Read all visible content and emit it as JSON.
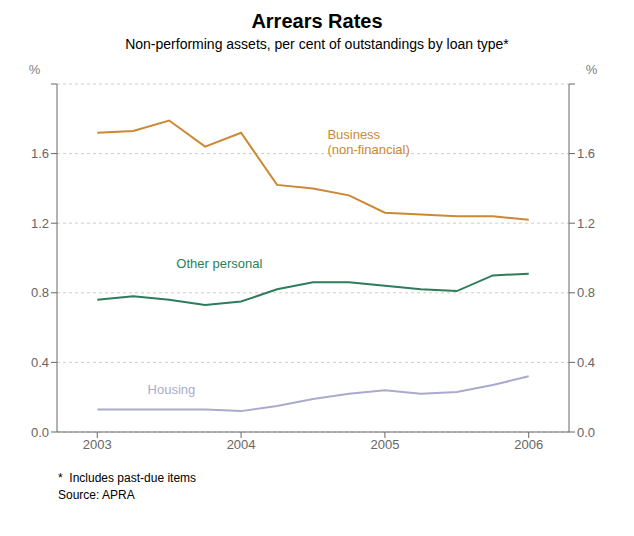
{
  "chart_data": {
    "type": "line",
    "title": "Arrears Rates",
    "subtitle": "Non-performing assets, per cent of outstandings by loan type*",
    "ylabel": "%",
    "y2label": "%",
    "footnotes": [
      "*  Includes past-due items",
      "Source: APRA"
    ],
    "x": [
      2003.0,
      2003.25,
      2003.5,
      2003.75,
      2004.0,
      2004.25,
      2004.5,
      2004.75,
      2005.0,
      2005.25,
      2005.5,
      2005.75,
      2006.0
    ],
    "series": [
      {
        "color": "#cc8833",
        "values": [
          1.72,
          1.73,
          1.79,
          1.64,
          1.72,
          1.42,
          1.4,
          1.36,
          1.26,
          1.25,
          1.24,
          1.24,
          1.22
        ]
      },
      {
        "color": "#2d7d5a",
        "values": [
          0.76,
          0.78,
          0.76,
          0.73,
          0.75,
          0.82,
          0.86,
          0.86,
          0.84,
          0.82,
          0.81,
          0.9,
          0.91
        ]
      },
      {
        "color": "#aaaacc",
        "values": [
          0.13,
          0.13,
          0.13,
          0.13,
          0.12,
          0.15,
          0.19,
          0.22,
          0.24,
          0.22,
          0.23,
          0.27,
          0.32
        ]
      }
    ],
    "annotations": [
      {
        "text": "Business\n(non-financial)",
        "x": 2004.6,
        "y": 1.67,
        "color": "#cc8833"
      },
      {
        "text": "Other personal",
        "x": 2003.55,
        "y": 0.97,
        "color": "#2d7d5a"
      },
      {
        "text": "Housing",
        "x": 2003.35,
        "y": 0.25,
        "color": "#aaaacc"
      }
    ],
    "xlim": [
      2002.72,
      2006.28
    ],
    "xticks": [
      2003,
      2004,
      2005,
      2006
    ],
    "ylim": [
      0.0,
      2.0
    ],
    "yticks": [
      {
        "value": 0,
        "label": "0.0"
      },
      0.4,
      0.8,
      1.2,
      1.6,
      {
        "value": 2,
        "label": ""
      }
    ],
    "y2lim": [
      0.0,
      2.0
    ],
    "y2ticks": [
      {
        "value": 0,
        "label": "0.0"
      },
      0.4,
      0.8,
      1.2,
      1.6,
      {
        "value": 2,
        "label": ""
      }
    ],
    "grid": true
  }
}
